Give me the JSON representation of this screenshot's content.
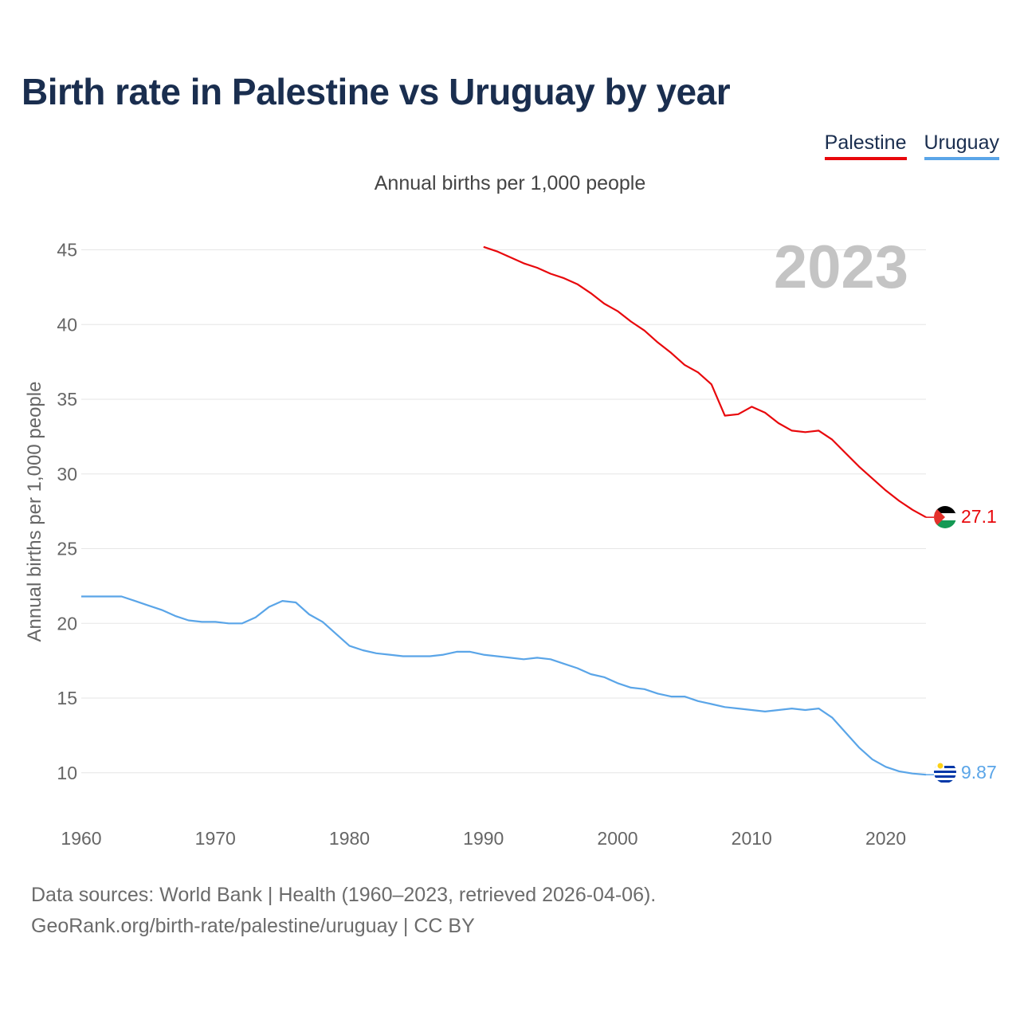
{
  "title": "Birth rate in Palestine vs Uruguay by year",
  "legend": {
    "palestine": "Palestine",
    "uruguay": "Uruguay"
  },
  "subtitle": "Annual births per 1,000 people",
  "footer": {
    "line1": "Data sources: World Bank | Health (1960–2023, retrieved 2026-04-06).",
    "line2": "GeoRank.org/birth-rate/palestine/uruguay | CC BY"
  },
  "colors": {
    "palestine": "#e8080c",
    "uruguay": "#5aa5e8",
    "title": "#1a2e4f",
    "year": "#c4c4c4"
  },
  "chart_data": {
    "type": "line",
    "title": "Birth rate in Palestine vs Uruguay by year",
    "xlabel": "",
    "ylabel": "Annual births per 1,000 people",
    "xlim": [
      1960,
      2023
    ],
    "ylim": [
      7,
      47
    ],
    "xticks": [
      1960,
      1970,
      1980,
      1990,
      2000,
      2010,
      2020
    ],
    "yticks": [
      10,
      15,
      20,
      25,
      30,
      35,
      40,
      45
    ],
    "year_label": "2023",
    "series": [
      {
        "name": "Palestine",
        "end_label": "27.1",
        "x": [
          1990,
          1991,
          1992,
          1993,
          1994,
          1995,
          1996,
          1997,
          1998,
          1999,
          2000,
          2001,
          2002,
          2003,
          2004,
          2005,
          2006,
          2007,
          2008,
          2009,
          2010,
          2011,
          2012,
          2013,
          2014,
          2015,
          2016,
          2017,
          2018,
          2019,
          2020,
          2021,
          2022,
          2023
        ],
        "values": [
          45.2,
          44.9,
          44.5,
          44.1,
          43.8,
          43.4,
          43.1,
          42.7,
          42.1,
          41.4,
          40.9,
          40.2,
          39.6,
          38.8,
          38.1,
          37.3,
          36.8,
          36.0,
          33.9,
          34.0,
          34.5,
          34.1,
          33.4,
          32.9,
          32.8,
          32.9,
          32.3,
          31.4,
          30.5,
          29.7,
          28.9,
          28.2,
          27.6,
          27.1
        ]
      },
      {
        "name": "Uruguay",
        "end_label": "9.87",
        "x": [
          1960,
          1961,
          1962,
          1963,
          1964,
          1965,
          1966,
          1967,
          1968,
          1969,
          1970,
          1971,
          1972,
          1973,
          1974,
          1975,
          1976,
          1977,
          1978,
          1979,
          1980,
          1981,
          1982,
          1983,
          1984,
          1985,
          1986,
          1987,
          1988,
          1989,
          1990,
          1991,
          1992,
          1993,
          1994,
          1995,
          1996,
          1997,
          1998,
          1999,
          2000,
          2001,
          2002,
          2003,
          2004,
          2005,
          2006,
          2007,
          2008,
          2009,
          2010,
          2011,
          2012,
          2013,
          2014,
          2015,
          2016,
          2017,
          2018,
          2019,
          2020,
          2021,
          2022,
          2023
        ],
        "values": [
          21.8,
          21.8,
          21.8,
          21.8,
          21.5,
          21.2,
          20.9,
          20.5,
          20.2,
          20.1,
          20.1,
          20.0,
          20.0,
          20.4,
          21.1,
          21.5,
          21.4,
          20.6,
          20.1,
          19.3,
          18.5,
          18.2,
          18.0,
          17.9,
          17.8,
          17.8,
          17.8,
          17.9,
          18.1,
          18.1,
          17.9,
          17.8,
          17.7,
          17.6,
          17.7,
          17.6,
          17.3,
          17.0,
          16.6,
          16.4,
          16.0,
          15.7,
          15.6,
          15.3,
          15.1,
          15.1,
          14.8,
          14.6,
          14.4,
          14.3,
          14.2,
          14.1,
          14.2,
          14.3,
          14.2,
          14.3,
          13.7,
          12.7,
          11.7,
          10.9,
          10.4,
          10.1,
          9.95,
          9.87
        ]
      }
    ]
  }
}
